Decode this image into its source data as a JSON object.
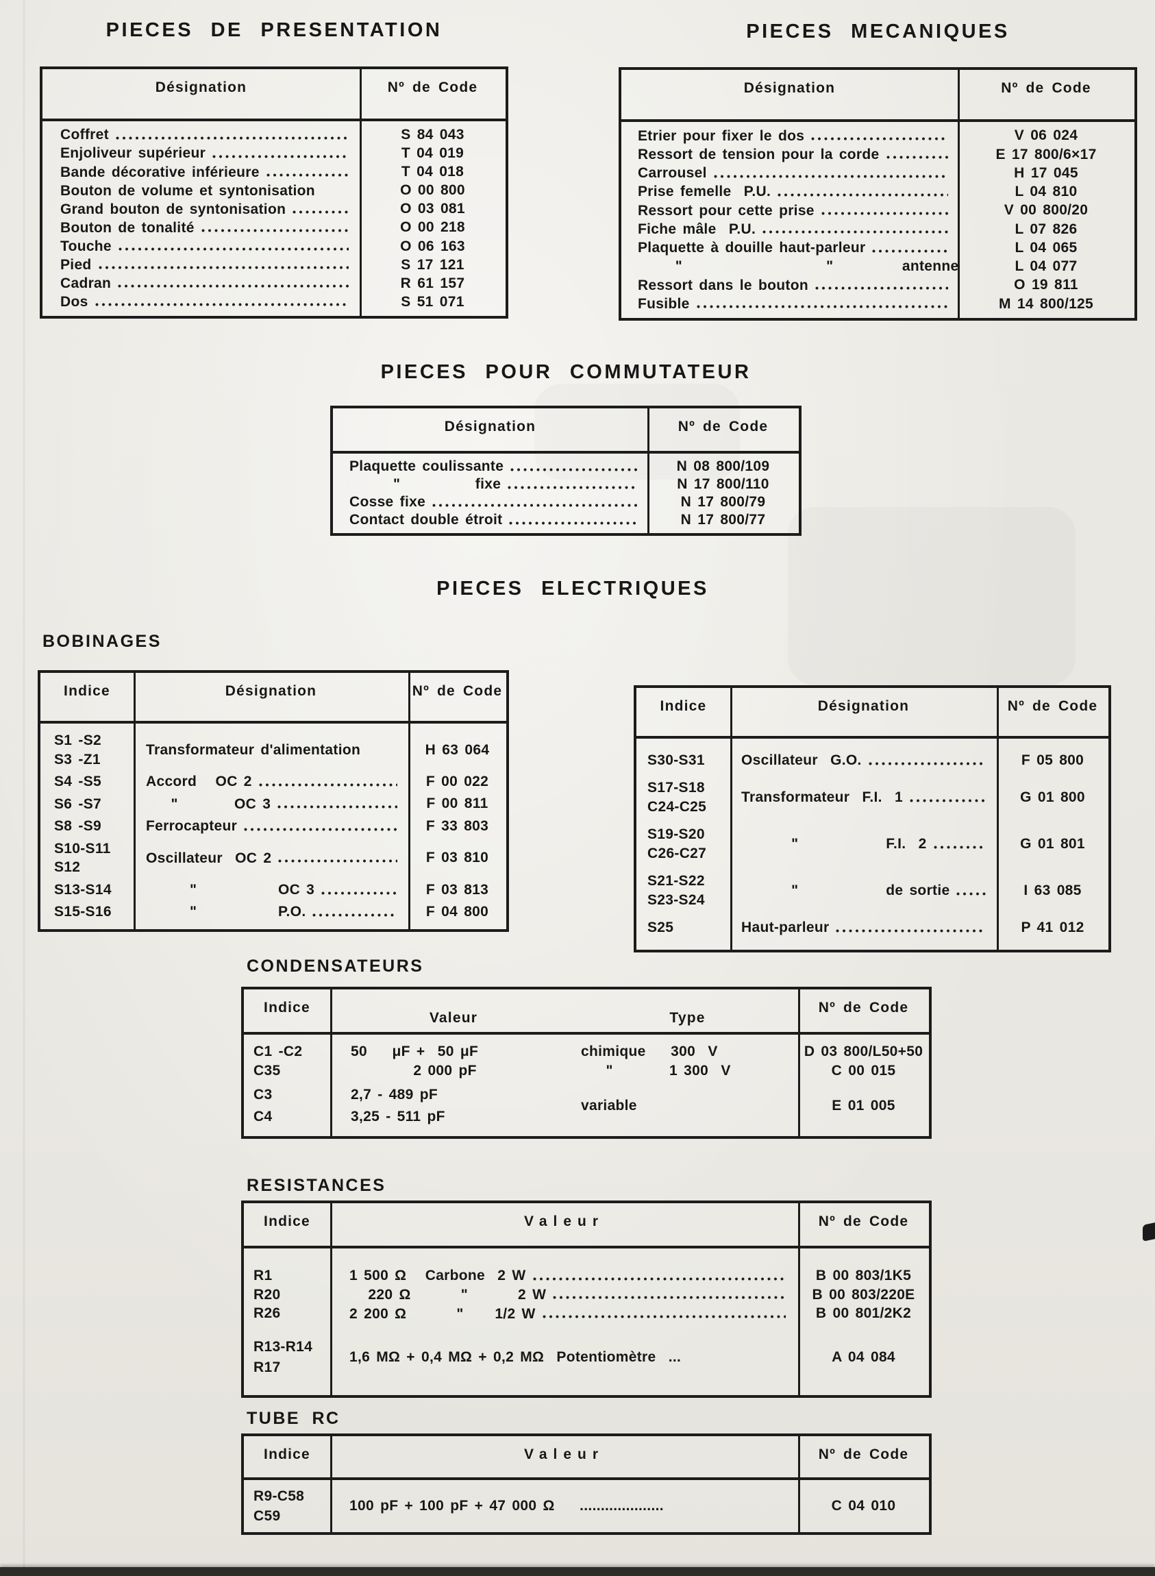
{
  "page": {
    "titles": {
      "presentation": "PIECES DE PRESENTATION",
      "mecaniques": "PIECES MECANIQUES",
      "commutateur": "PIECES POUR COMMUTATEUR",
      "electriques": "PIECES ELECTRIQUES"
    },
    "section_labels": {
      "bobinages": "BOBINAGES",
      "condensateurs": "CONDENSATEURS",
      "resistances": "RESISTANCES",
      "tube_rc": "TUBE RC"
    },
    "headers": {
      "designation": "Désignation",
      "code": "Nº de Code",
      "indice": "Indice",
      "valeur": "Valeur",
      "type": "Type"
    },
    "paper_color": "#eae8e2",
    "ink_color": "#171717"
  },
  "presentation": {
    "rows": [
      {
        "label": "Coffret",
        "code": "S 84 043",
        "dots": true
      },
      {
        "label": "Enjoliveur supérieur",
        "code": "T 04 019",
        "dots": true
      },
      {
        "label": "Bande décorative inférieure",
        "code": "T 04 018",
        "dots": true
      },
      {
        "label": "Bouton de volume et syntonisation",
        "code": "O 00 800",
        "dots": false
      },
      {
        "label": "Grand bouton de syntonisation",
        "code": "O 03 081",
        "dots": true
      },
      {
        "label": "Bouton de tonalité",
        "code": "O 00 218",
        "dots": true
      },
      {
        "label": "Touche",
        "code": "O 06 163",
        "dots": true
      },
      {
        "label": "Pied",
        "code": "S 17 121",
        "dots": true
      },
      {
        "label": "Cadran",
        "code": "R 61 157",
        "dots": true
      },
      {
        "label": "Dos",
        "code": "S 51 071",
        "dots": true
      }
    ]
  },
  "mecaniques": {
    "rows": [
      {
        "label": "Etrier pour fixer le dos",
        "code": "V 06 024",
        "dots": true
      },
      {
        "label": "Ressort de tension pour la corde",
        "code": "E 17 800/6×17",
        "dots": true
      },
      {
        "label": "Carrousel",
        "code": "H 17 045",
        "dots": true
      },
      {
        "label": "Prise femelle  P.U.",
        "code": "L 04 810",
        "dots": true
      },
      {
        "label": "Ressort pour cette prise",
        "code": "V 00 800/20",
        "dots": true
      },
      {
        "label": "Fiche mâle  P.U.",
        "code": "L 07 826",
        "dots": true
      },
      {
        "label": "Plaquette à douille haut-parleur",
        "code": "L 04 065",
        "dots": true
      },
      {
        "label": "      \"                       \"           antenne",
        "code": "L 04 077",
        "dots": true
      },
      {
        "label": "Ressort dans le bouton",
        "code": "O 19 811",
        "dots": true
      },
      {
        "label": "Fusible",
        "code": "M 14 800/125",
        "dots": true
      }
    ]
  },
  "commutateur": {
    "rows": [
      {
        "label": "Plaquette coulissante",
        "code": "N 08 800/109",
        "dots": true
      },
      {
        "label": "       \"            fixe",
        "code": "N 17 800/110",
        "dots": true
      },
      {
        "label": "Cosse fixe",
        "code": "N 17 800/79",
        "dots": true
      },
      {
        "label": "Contact double étroit",
        "code": "N 17 800/77",
        "dots": true
      }
    ]
  },
  "bobinages_left": {
    "rows": [
      {
        "indice": [
          "S1 -S2",
          "S3 -Z1"
        ],
        "label": "Transformateur d'alimentation",
        "code": "H 63 064",
        "dots": false
      },
      {
        "indice": [
          "S4 -S5"
        ],
        "label": "Accord   OC 2",
        "code": "F 00 022",
        "dots": true
      },
      {
        "indice": [
          "S6 -S7"
        ],
        "label": "    \"         OC 3",
        "code": "F 00 811",
        "dots": true
      },
      {
        "indice": [
          "S8 -S9"
        ],
        "label": "Ferrocapteur",
        "code": "F 33 803",
        "dots": true
      },
      {
        "indice": [
          "S10-S11",
          "S12"
        ],
        "label": "Oscillateur  OC 2",
        "code": "F 03 810",
        "dots": true
      },
      {
        "indice": [
          "S13-S14"
        ],
        "label": "       \"             OC 3",
        "code": "F 03 813",
        "dots": true
      },
      {
        "indice": [
          "S15-S16"
        ],
        "label": "       \"             P.O.",
        "code": "F 04 800",
        "dots": true
      }
    ]
  },
  "bobinages_right": {
    "rows": [
      {
        "indice": [
          "S30-S31"
        ],
        "label": "Oscillateur  G.O.",
        "code": "F 05 800",
        "dots": true
      },
      {
        "indice": [
          "S17-S18",
          "C24-C25"
        ],
        "label": "Transformateur  F.I.  1",
        "code": "G 01 800",
        "dots": true
      },
      {
        "indice": [
          "S19-S20",
          "C26-C27"
        ],
        "label": "        \"              F.I.  2",
        "code": "G 01 801",
        "dots": true
      },
      {
        "indice": [
          "S21-S22",
          "S23-S24"
        ],
        "label": "        \"              de sortie",
        "code": "I 63 085",
        "dots": true
      },
      {
        "indice": [
          "S25"
        ],
        "label": "Haut-parleur",
        "code": "P 41 012",
        "dots": true
      }
    ]
  },
  "condensateurs": {
    "rows_top": [
      {
        "indice": "C1 -C2",
        "valeur": "50    μF +  50 μF",
        "type": "chimique    300  V",
        "code": "D 03 800/L50+50"
      },
      {
        "indice": "C35",
        "valeur": "          2 000 pF",
        "type": "    \"         1 300  V",
        "code": "C 00 015"
      }
    ],
    "group": {
      "indice": [
        "C3",
        "C4"
      ],
      "valeur": [
        "2,7    -    489 pF",
        "3,25  -    511 pF"
      ],
      "type": "variable",
      "code": "E 01 005"
    }
  },
  "resistances": {
    "rows_simple": [
      {
        "indice": "R1",
        "valeur": "1 500 Ω   Carbone  2 W",
        "code": "B 00 803/1K5"
      },
      {
        "indice": "R20",
        "valeur": "   220 Ω        \"        2 W",
        "code": "B 00 803/220E"
      },
      {
        "indice": "R26",
        "valeur": "2 200 Ω        \"     1/2 W",
        "code": "B 00 801/2K2"
      }
    ],
    "row_pot": {
      "indice": [
        "R13-R14",
        "R17"
      ],
      "valeur": "1,6 MΩ + 0,4 MΩ + 0,2 MΩ  Potentiomètre  ...",
      "code": "A 04 084"
    }
  },
  "tube_rc": {
    "row": {
      "indice": [
        "R9-C58",
        "C59"
      ],
      "valeur": "100 pF + 100 pF + 47 000 Ω    ....................",
      "code": "C 04 010"
    }
  }
}
